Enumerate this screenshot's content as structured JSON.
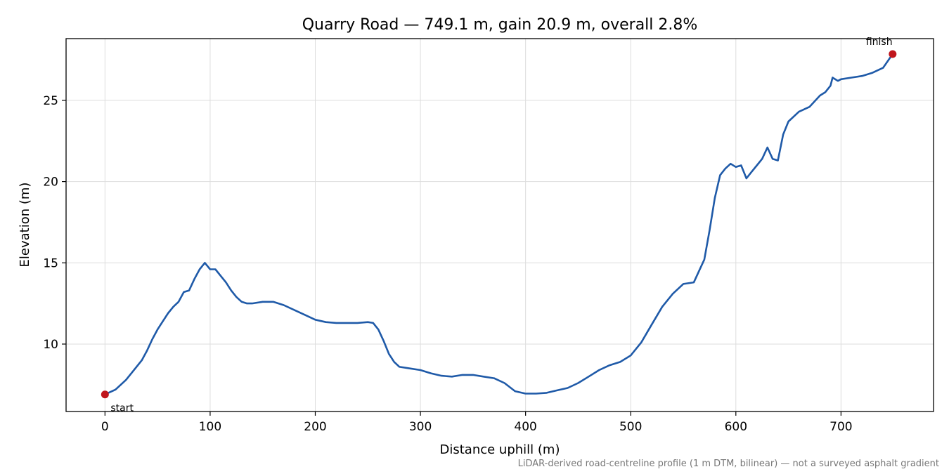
{
  "chart_data": {
    "type": "line",
    "title": "Quarry Road — 749.1 m, gain 20.9 m, overall 2.8%",
    "xlabel": "Distance uphill (m)",
    "ylabel": "Elevation (m)",
    "footnote": "LiDAR-derived road-centreline profile (1 m DTM, bilinear) — not a surveyed asphalt gradient",
    "xlim": [
      -37,
      788
    ],
    "ylim": [
      5.85,
      28.8
    ],
    "xticks": [
      0,
      100,
      200,
      300,
      400,
      500,
      600,
      700
    ],
    "yticks": [
      10,
      15,
      20,
      25
    ],
    "grid": true,
    "line_color": "#1f5aa8",
    "marker_color": "#c0161d",
    "series": [
      {
        "x": [
          0,
          10,
          20,
          30,
          35,
          40,
          45,
          50,
          55,
          60,
          65,
          70,
          75,
          80,
          85,
          90,
          95,
          100,
          105,
          110,
          115,
          120,
          125,
          130,
          135,
          140,
          150,
          160,
          170,
          180,
          190,
          200,
          210,
          220,
          230,
          240,
          250,
          255,
          260,
          265,
          270,
          275,
          280,
          290,
          300,
          310,
          320,
          330,
          340,
          350,
          360,
          370,
          380,
          390,
          400,
          410,
          420,
          430,
          440,
          450,
          460,
          470,
          480,
          490,
          500,
          510,
          520,
          530,
          540,
          550,
          560,
          565,
          570,
          575,
          580,
          585,
          590,
          595,
          600,
          605,
          610,
          615,
          620,
          625,
          630,
          635,
          640,
          645,
          650,
          660,
          670,
          680,
          685,
          690,
          692,
          697,
          700,
          710,
          720,
          730,
          740,
          749.1
        ],
        "y": [
          6.9,
          7.2,
          7.8,
          8.6,
          9.0,
          9.6,
          10.3,
          10.9,
          11.4,
          11.9,
          12.3,
          12.6,
          13.2,
          13.3,
          14.0,
          14.6,
          15.0,
          14.6,
          14.6,
          14.2,
          13.8,
          13.3,
          12.9,
          12.6,
          12.5,
          12.5,
          12.6,
          12.6,
          12.4,
          12.1,
          11.8,
          11.5,
          11.35,
          11.3,
          11.3,
          11.3,
          11.35,
          11.3,
          10.9,
          10.2,
          9.4,
          8.9,
          8.6,
          8.5,
          8.4,
          8.2,
          8.05,
          8.0,
          8.1,
          8.1,
          8.0,
          7.9,
          7.6,
          7.1,
          6.95,
          6.95,
          7.0,
          7.15,
          7.3,
          7.6,
          8.0,
          8.4,
          8.7,
          8.9,
          9.3,
          10.1,
          11.2,
          12.3,
          13.1,
          13.7,
          13.8,
          14.5,
          15.2,
          17.0,
          19.0,
          20.4,
          20.8,
          21.1,
          20.9,
          21.0,
          20.2,
          20.6,
          21.0,
          21.4,
          22.1,
          21.4,
          21.3,
          22.9,
          23.7,
          24.3,
          24.6,
          25.3,
          25.5,
          25.9,
          26.4,
          26.2,
          26.3,
          26.4,
          26.5,
          26.7,
          27.0,
          27.85
        ]
      }
    ],
    "annotations": [
      {
        "label": "start",
        "x": 0,
        "y": 6.9
      },
      {
        "label": "finish",
        "x": 749.1,
        "y": 27.85
      }
    ]
  }
}
